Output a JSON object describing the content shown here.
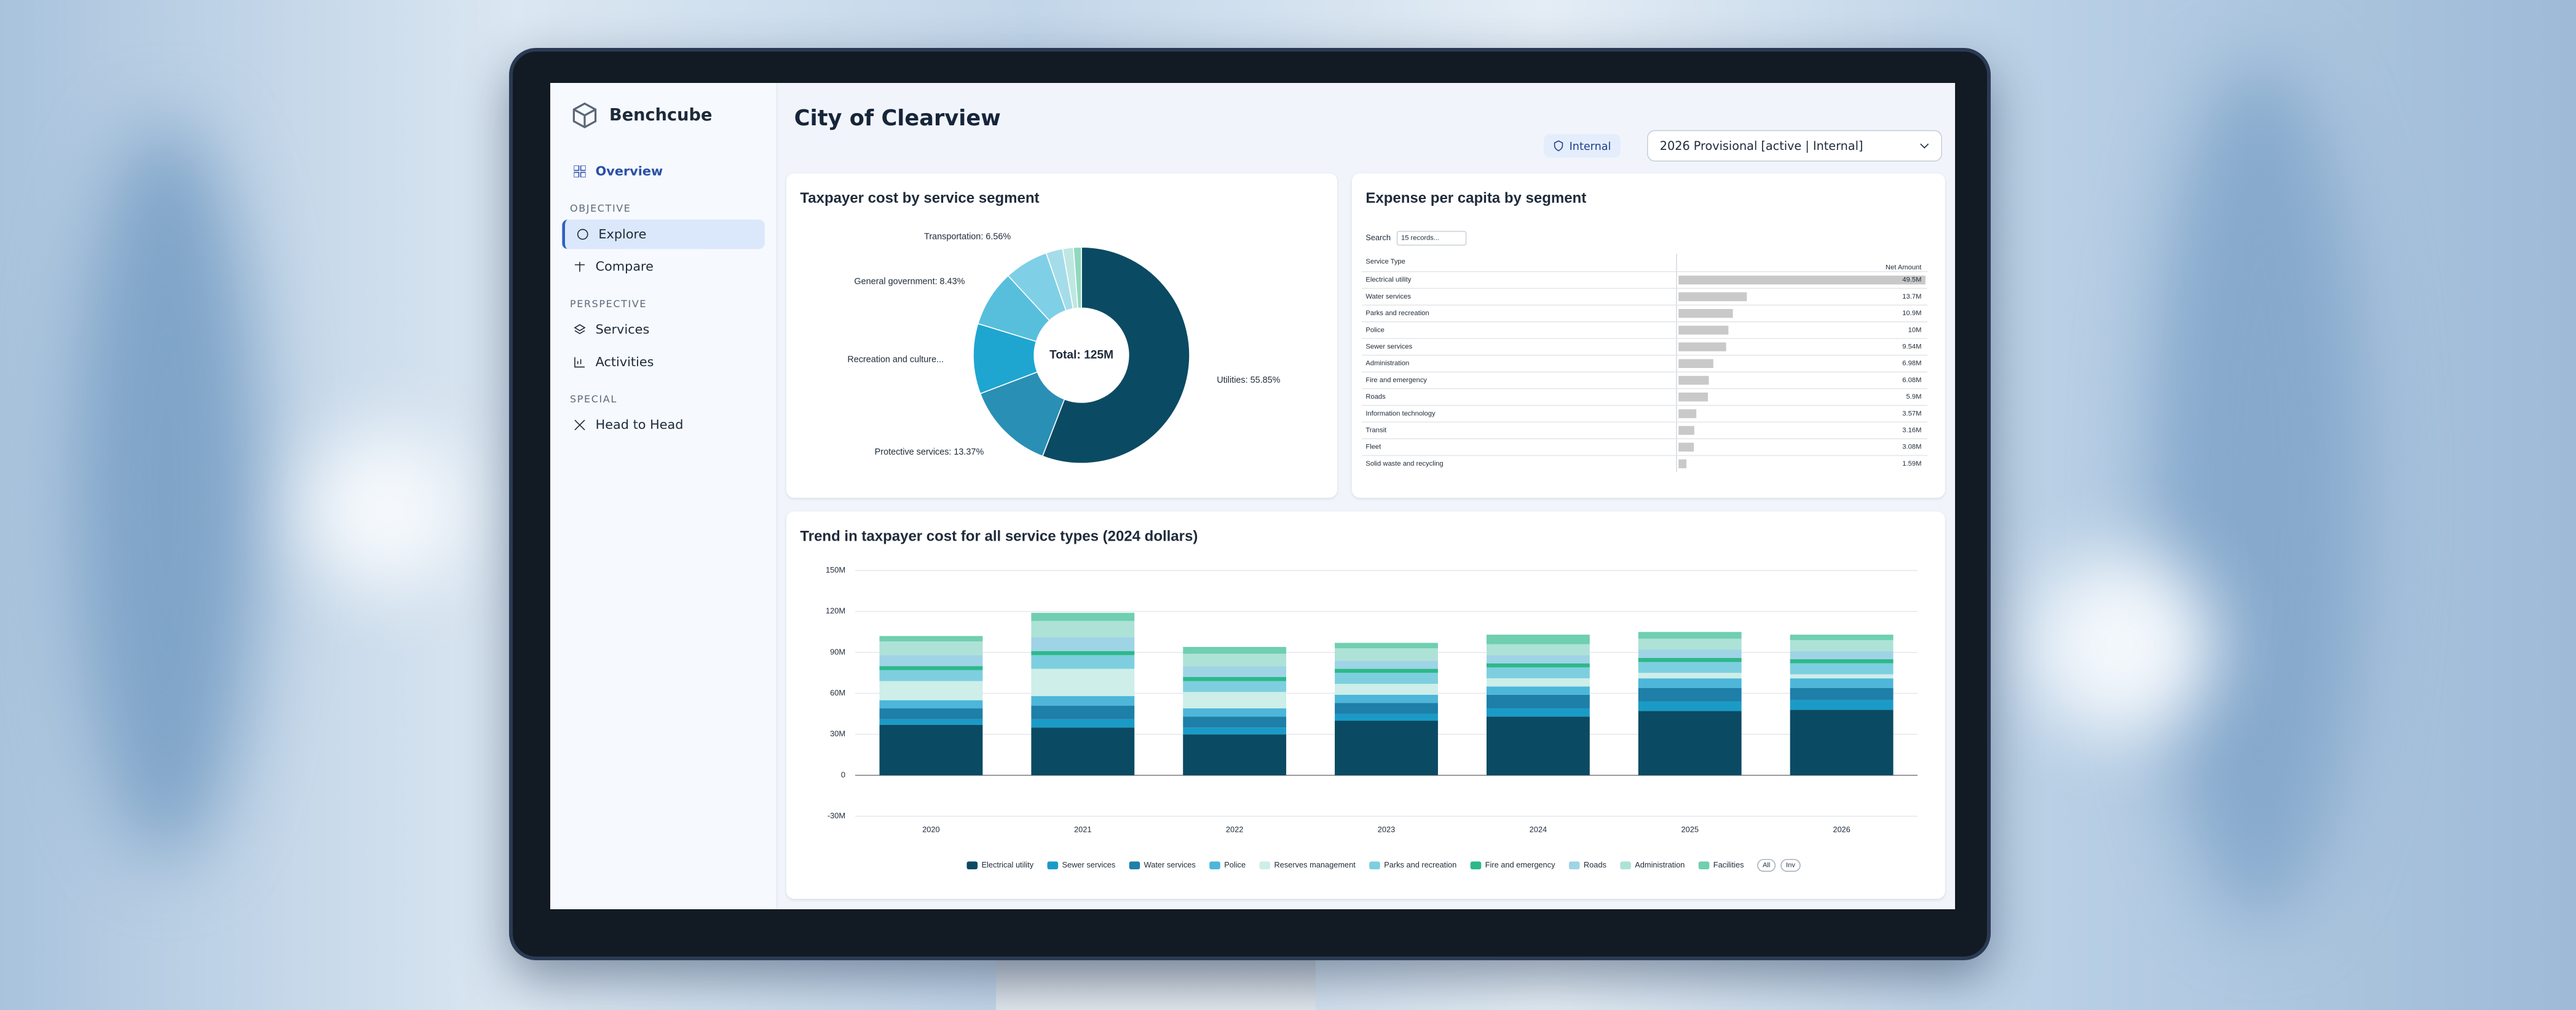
{
  "sidebar": {
    "brand": "Benchcube",
    "overview": "Overview",
    "sections": [
      {
        "heading": "OBJECTIVE",
        "items": [
          "Explore",
          "Compare"
        ]
      },
      {
        "heading": "PERSPECTIVE",
        "items": [
          "Services",
          "Activities"
        ]
      },
      {
        "heading": "SPECIAL",
        "items": [
          "Head to Head"
        ]
      }
    ]
  },
  "header": {
    "title": "City of Clearview",
    "badge": "Internal",
    "scenario": "2026 Provisional [active | Internal]"
  },
  "chart_data": [
    {
      "type": "pie",
      "donut": true,
      "title": "Taxpayer cost by service segment",
      "center_label": "Total: 125M",
      "values": [
        55.85,
        13.37,
        10.5,
        8.43,
        6.56,
        2.5,
        1.6,
        1.19
      ],
      "value_labels": [
        "Utilities: 55.85%",
        "Protective services: 13.37%",
        "Recreation and culture...",
        "General government: 8.43%",
        "Transportation: 6.56%",
        null,
        null,
        null
      ],
      "colors": [
        "#0b4a63",
        "#2a8fb5",
        "#1ea6d1",
        "#57bfdc",
        "#7fd0e6",
        "#a5dcea",
        "#bfe7e2",
        "#8fd9bf"
      ]
    },
    {
      "type": "bar",
      "orientation": "horizontal",
      "title": "Expense per capita by segment",
      "search_label": "Search",
      "search_placeholder": "15 records...",
      "columns": [
        "Service Type",
        "Net Amount"
      ],
      "categories": [
        "Electrical utility",
        "Water services",
        "Parks and recreation",
        "Police",
        "Sewer services",
        "Administration",
        "Fire and emergency",
        "Roads",
        "Information technology",
        "Transit",
        "Fleet",
        "Solid waste and recycling"
      ],
      "values": [
        49.5,
        13.7,
        10.9,
        10,
        9.54,
        6.98,
        6.08,
        5.9,
        3.57,
        3.16,
        3.08,
        1.59
      ],
      "value_labels": [
        "49.5M",
        "13.7M",
        "10.9M",
        "10M",
        "9.54M",
        "6.98M",
        "6.08M",
        "5.9M",
        "3.57M",
        "3.16M",
        "3.08M",
        "1.59M"
      ],
      "color": "#c9c9c9"
    },
    {
      "type": "stacked-bar",
      "title": "Trend in taxpayer cost for all service types (2024 dollars)",
      "categories": [
        "2020",
        "2021",
        "2022",
        "2023",
        "2024",
        "2025",
        "2026"
      ],
      "ylim": [
        -30,
        150
      ],
      "yticks": [
        {
          "value": -30,
          "label": "-30M"
        },
        0,
        {
          "value": 30,
          "label": "30M"
        },
        {
          "value": 60,
          "label": "60M"
        },
        {
          "value": 90,
          "label": "90M"
        },
        {
          "value": 120,
          "label": "120M"
        },
        {
          "value": 150,
          "label": "150M"
        }
      ],
      "grid": true,
      "legend_buttons": [
        "All",
        "Inv"
      ],
      "series": [
        {
          "name": "Electrical utility",
          "color": "#0b4a63",
          "values": [
            37,
            35,
            30,
            40,
            43,
            47,
            48
          ]
        },
        {
          "name": "Sewer services",
          "color": "#1a9bc7",
          "values": [
            4,
            6,
            5,
            5,
            6,
            7,
            7
          ]
        },
        {
          "name": "Water services",
          "color": "#1e7fa8",
          "values": [
            8,
            10,
            8,
            8,
            10,
            10,
            9
          ]
        },
        {
          "name": "Police",
          "color": "#4db6d9",
          "values": [
            6,
            7,
            6,
            6,
            6,
            7,
            7
          ]
        },
        {
          "name": "Reserves management",
          "color": "#cdeee9",
          "values": [
            14,
            20,
            12,
            8,
            6,
            4,
            3
          ]
        },
        {
          "name": "Parks and recreation",
          "color": "#7dcfe0",
          "values": [
            8,
            10,
            8,
            8,
            8,
            8,
            8
          ]
        },
        {
          "name": "Fire and emergency",
          "color": "#2db88a",
          "values": [
            3,
            3,
            3,
            3,
            3,
            3,
            3
          ]
        },
        {
          "name": "Roads",
          "color": "#9fd3e6",
          "values": [
            8,
            10,
            8,
            6,
            6,
            6,
            6
          ]
        },
        {
          "name": "Administration",
          "color": "#aee2d6",
          "values": [
            10,
            12,
            9,
            9,
            8,
            8,
            8
          ]
        },
        {
          "name": "Facilities",
          "color": "#6fcfb0",
          "values": [
            4,
            6,
            5,
            4,
            7,
            5,
            4
          ]
        }
      ]
    }
  ]
}
